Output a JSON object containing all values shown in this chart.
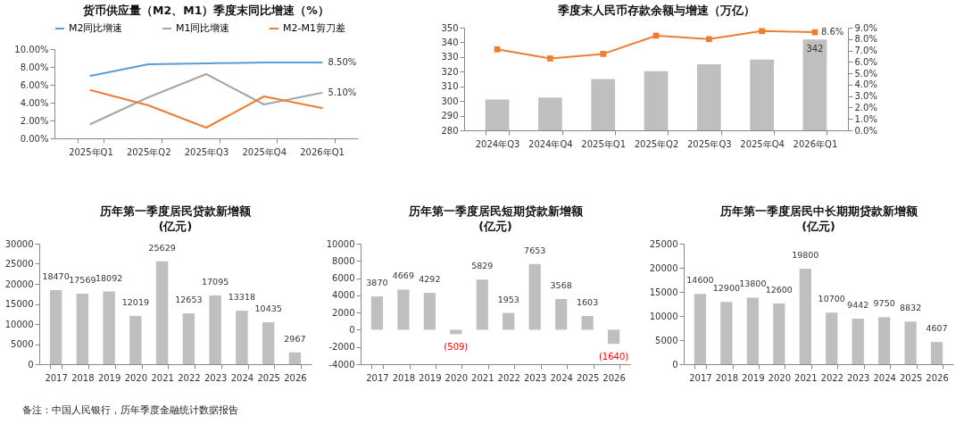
{
  "chart_data": [
    {
      "type": "line",
      "title": "货币供应量（M2、M1）季度末同比增速（%）",
      "categories": [
        "2025年Q1",
        "2025年Q2",
        "2025年Q3",
        "2025年Q4",
        "2026年Q1"
      ],
      "series": [
        {
          "name": "M2同比增速",
          "color": "#5b9bd5",
          "values": [
            7.0,
            8.3,
            8.4,
            8.5,
            8.5
          ],
          "value_labels": [
            null,
            null,
            null,
            null,
            "8.50%"
          ]
        },
        {
          "name": "M1同比增速",
          "color": "#a5a5a5",
          "values": [
            1.6,
            4.6,
            7.2,
            3.8,
            5.1
          ],
          "value_labels": [
            null,
            null,
            null,
            null,
            "5.10%"
          ]
        },
        {
          "name": "M2-M1剪刀差",
          "color": "#ed7d31",
          "values": [
            5.4,
            3.7,
            1.2,
            4.7,
            3.4
          ]
        }
      ],
      "ylim": [
        0,
        10
      ],
      "yticks": [
        {
          "value": 0,
          "label": "0.00%"
        },
        {
          "value": 2,
          "label": "2.00%"
        },
        {
          "value": 4,
          "label": "4.00%"
        },
        {
          "value": 6,
          "label": "6.00%"
        },
        {
          "value": 8,
          "label": "8.00%"
        },
        {
          "value": 10,
          "label": "10.00%"
        }
      ],
      "legend": "top",
      "grid": false
    },
    {
      "type": "bar",
      "title": "季度末人民币存款余额与增速（万亿）",
      "categories": [
        "2024年Q3",
        "2024年Q4",
        "2025年Q1",
        "2025年Q2",
        "2025年Q3",
        "2025年Q4",
        "2026年Q1"
      ],
      "series": [
        {
          "type": "bar",
          "color": "#bfbfbf",
          "values": [
            301,
            302.3,
            315,
            320.4,
            325,
            328.3,
            342
          ],
          "value_labels": [
            null,
            null,
            null,
            null,
            null,
            null,
            "342"
          ]
        },
        {
          "type": "line",
          "axis": "y2",
          "color": "#ed7d31",
          "values": [
            7.1,
            6.3,
            6.7,
            8.3,
            8.0,
            8.7,
            8.6
          ],
          "value_labels": [
            null,
            null,
            null,
            null,
            null,
            null,
            "8.6%"
          ]
        }
      ],
      "ylim": [
        280,
        350
      ],
      "yticks": [
        280,
        290,
        300,
        310,
        320,
        330,
        340,
        350
      ],
      "y2lim": [
        0,
        9
      ],
      "y2ticks": [
        {
          "value": 0,
          "label": "0.0%"
        },
        {
          "value": 1,
          "label": "1.0%"
        },
        {
          "value": 2,
          "label": "2.0%"
        },
        {
          "value": 3,
          "label": "3.0%"
        },
        {
          "value": 4,
          "label": "4.0%"
        },
        {
          "value": 5,
          "label": "5.0%"
        },
        {
          "value": 6,
          "label": "6.0%"
        },
        {
          "value": 7,
          "label": "7.0%"
        },
        {
          "value": 8,
          "label": "8.0%"
        },
        {
          "value": 9,
          "label": "9.0%"
        }
      ],
      "marker": "square",
      "grid": false
    },
    {
      "type": "bar",
      "title": "历年第一季度居民贷款新增额\n(亿元)",
      "categories": [
        "2017",
        "2018",
        "2019",
        "2020",
        "2021",
        "2022",
        "2023",
        "2024",
        "2025",
        "2026"
      ],
      "series": [
        {
          "color": "#bfbfbf",
          "values": [
            18470,
            17569,
            18092,
            12019,
            25629,
            12653,
            17095,
            13318,
            10435,
            2967
          ]
        }
      ],
      "ylim": [
        0,
        30000
      ],
      "yticks": [
        0,
        5000,
        10000,
        15000,
        20000,
        25000,
        30000
      ],
      "data_labels": true,
      "grid": false,
      "annotations": [
        "备注：中国人民银行，历年季度金融统计数据报告"
      ]
    },
    {
      "type": "bar",
      "title": "历年第一季度居民短期贷款新增额\n(亿元)",
      "categories": [
        "2017",
        "2018",
        "2019",
        "2020",
        "2021",
        "2022",
        "2023",
        "2024",
        "2025",
        "2026"
      ],
      "series": [
        {
          "color": "#bfbfbf",
          "values": [
            3870,
            4669,
            4292,
            -509,
            5829,
            1953,
            7653,
            3568,
            1603,
            -1640
          ],
          "value_labels": [
            "3870",
            "4669",
            "4292",
            "(509)",
            "5829",
            "1953",
            "7653",
            "3568",
            "1603",
            "(1640)"
          ]
        }
      ],
      "ylim": [
        -4000,
        10000
      ],
      "yticks": [
        -4000,
        -2000,
        0,
        2000,
        4000,
        6000,
        8000,
        10000
      ],
      "grid": false
    },
    {
      "type": "bar",
      "title": "历年第一季度居民中长期期贷款新增额\n(亿元)",
      "categories": [
        "2017",
        "2018",
        "2019",
        "2020",
        "2021",
        "2022",
        "2023",
        "2024",
        "2025",
        "2026"
      ],
      "series": [
        {
          "color": "#bfbfbf",
          "values": [
            14600,
            12900,
            13800,
            12600,
            19800,
            10700,
            9442,
            9750,
            8832,
            4607
          ]
        }
      ],
      "ylim": [
        0,
        25000
      ],
      "yticks": [
        0,
        5000,
        10000,
        15000,
        20000,
        25000
      ],
      "data_labels": true,
      "grid": false
    }
  ]
}
